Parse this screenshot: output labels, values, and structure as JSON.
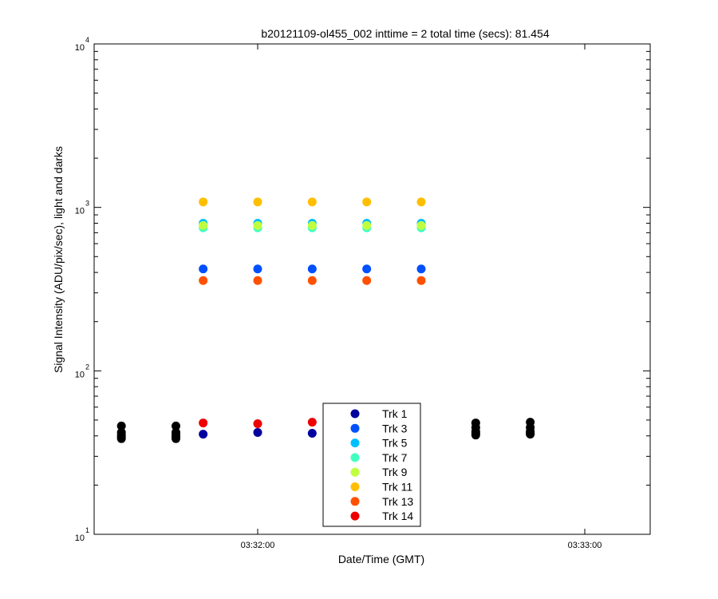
{
  "chart_data": {
    "type": "scatter",
    "title": "b20121109-ol455_002 inttime = 2 total time (secs): 81.454",
    "xlabel": "Date/Time (GMT)",
    "ylabel": "Signal Intensity (ADU/pix/sec), light and darks",
    "y_scale": "log",
    "ylim": [
      10,
      10000
    ],
    "xlim": [
      "03:31:30",
      "03:33:12"
    ],
    "x_ticks": [
      "03:32:00",
      "03:33:00"
    ],
    "y_ticks": [
      {
        "base": "10",
        "exp": "1",
        "value": 10
      },
      {
        "base": "10",
        "exp": "2",
        "value": 100
      },
      {
        "base": "10",
        "exp": "3",
        "value": 1000
      },
      {
        "base": "10",
        "exp": "4",
        "value": 10000
      }
    ],
    "legend_position": "bottom-center",
    "series": [
      {
        "name": "Trk 1",
        "color": "#00009f",
        "points": [
          [
            "03:31:50",
            41
          ],
          [
            "03:32:00",
            42
          ],
          [
            "03:32:10",
            41.5
          ]
        ]
      },
      {
        "name": "Trk 3",
        "color": "#0050ff",
        "points": [
          [
            "03:31:50",
            420
          ],
          [
            "03:32:00",
            420
          ],
          [
            "03:32:10",
            420
          ],
          [
            "03:32:20",
            420
          ],
          [
            "03:32:30",
            420
          ]
        ]
      },
      {
        "name": "Trk 5",
        "color": "#00bfff",
        "points": [
          [
            "03:31:50",
            800
          ],
          [
            "03:32:00",
            800
          ],
          [
            "03:32:10",
            800
          ],
          [
            "03:32:20",
            800
          ],
          [
            "03:32:30",
            800
          ]
        ]
      },
      {
        "name": "Trk 7",
        "color": "#40ffbf",
        "points": [
          [
            "03:31:50",
            750
          ],
          [
            "03:32:00",
            750
          ],
          [
            "03:32:10",
            750
          ],
          [
            "03:32:20",
            750
          ],
          [
            "03:32:30",
            750
          ]
        ]
      },
      {
        "name": "Trk 9",
        "color": "#bfff40",
        "points": [
          [
            "03:31:50",
            775
          ],
          [
            "03:32:00",
            775
          ],
          [
            "03:32:10",
            775
          ],
          [
            "03:32:20",
            775
          ],
          [
            "03:32:30",
            775
          ]
        ]
      },
      {
        "name": "Trk 11",
        "color": "#ffbf00",
        "points": [
          [
            "03:31:50",
            1080
          ],
          [
            "03:32:00",
            1080
          ],
          [
            "03:32:10",
            1080
          ],
          [
            "03:32:20",
            1080
          ],
          [
            "03:32:30",
            1080
          ]
        ]
      },
      {
        "name": "Trk 13",
        "color": "#ff5000",
        "points": [
          [
            "03:31:50",
            357
          ],
          [
            "03:32:00",
            357
          ],
          [
            "03:32:10",
            357
          ],
          [
            "03:32:20",
            357
          ],
          [
            "03:32:30",
            357
          ]
        ]
      },
      {
        "name": "Trk 14",
        "color": "#ef0000",
        "points": [
          [
            "03:31:50",
            48
          ],
          [
            "03:32:00",
            47.5
          ],
          [
            "03:32:10",
            48.5
          ]
        ]
      }
    ],
    "dark_series": {
      "color": "#000000",
      "points": [
        [
          "03:31:35",
          46
        ],
        [
          "03:31:35",
          42
        ],
        [
          "03:31:35",
          40.5
        ],
        [
          "03:31:35",
          39.5
        ],
        [
          "03:31:35",
          38.5
        ],
        [
          "03:31:45",
          46
        ],
        [
          "03:31:45",
          42
        ],
        [
          "03:31:45",
          40.5
        ],
        [
          "03:31:45",
          39.5
        ],
        [
          "03:31:45",
          38.5
        ],
        [
          "03:32:40",
          48
        ],
        [
          "03:32:40",
          45
        ],
        [
          "03:32:40",
          42.5
        ],
        [
          "03:32:40",
          41.5
        ],
        [
          "03:32:40",
          40.5
        ],
        [
          "03:32:50",
          48.5
        ],
        [
          "03:32:50",
          45
        ],
        [
          "03:32:50",
          42.5
        ],
        [
          "03:32:50",
          41.5
        ],
        [
          "03:32:50",
          41
        ]
      ]
    }
  }
}
